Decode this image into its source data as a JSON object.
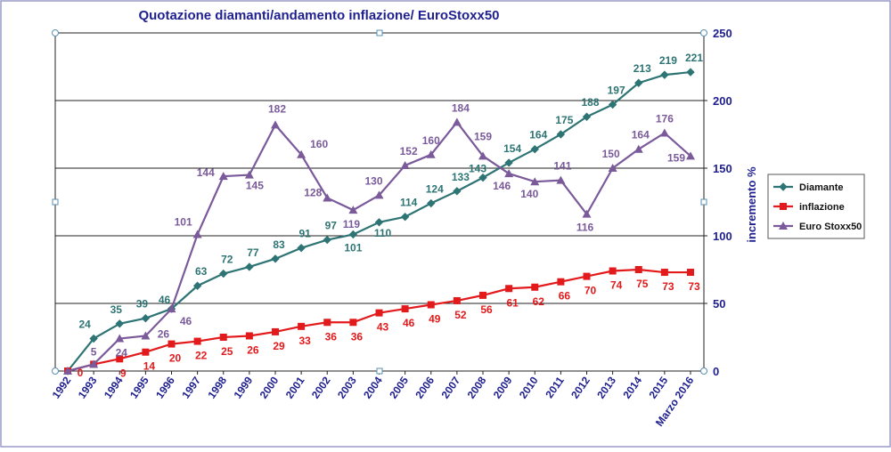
{
  "chart_data": {
    "type": "line",
    "title": "Quotazione diamanti/andamento inflazione/ EuroStoxx50",
    "ylabel": "incremento %",
    "ylim": [
      0,
      250
    ],
    "yticks": [
      "0",
      "50",
      "100",
      "150",
      "200",
      "250"
    ],
    "grid": true,
    "legend_position": "right",
    "categories": [
      "1992",
      "1993",
      "1994",
      "1995",
      "1996",
      "1997",
      "1998",
      "1999",
      "2000",
      "2001",
      "2002",
      "2003",
      "2004",
      "2005",
      "2006",
      "2007",
      "2008",
      "2009",
      "2010",
      "2011",
      "2012",
      "2013",
      "2014",
      "2015",
      "Marzo 2016"
    ],
    "series": [
      {
        "name": "Diamante",
        "color": "#2e7474",
        "marker": "diamond",
        "values": [
          0,
          24,
          35,
          39,
          46,
          63,
          72,
          77,
          83,
          91,
          97,
          101,
          110,
          114,
          124,
          133,
          143,
          154,
          164,
          175,
          188,
          197,
          213,
          219,
          221
        ],
        "labels": [
          "",
          "24",
          "35",
          "39",
          "46",
          "63",
          "72",
          "77",
          "83",
          "91",
          "97",
          "101",
          "110",
          "114",
          "124",
          "133",
          "143",
          "154",
          "164",
          "175",
          "188",
          "197",
          "213",
          "219",
          "221"
        ]
      },
      {
        "name": "inflazione",
        "color": "#e31a1c",
        "marker": "square",
        "values": [
          0,
          5,
          9,
          14,
          20,
          22,
          25,
          26,
          29,
          33,
          36,
          36,
          43,
          46,
          49,
          52,
          56,
          61,
          62,
          66,
          70,
          74,
          75,
          73,
          73
        ],
        "labels": [
          "0",
          "",
          "9",
          "14",
          "20",
          "22",
          "25",
          "26",
          "29",
          "33",
          "36",
          "36",
          "43",
          "46",
          "49",
          "52",
          "56",
          "61",
          "62",
          "66",
          "70",
          "74",
          "75",
          "73",
          "73"
        ]
      },
      {
        "name": "Euro Stoxx50",
        "color": "#7a5a9a",
        "marker": "triangle",
        "values": [
          0,
          5,
          24,
          26,
          46,
          101,
          144,
          145,
          182,
          160,
          128,
          119,
          130,
          152,
          160,
          184,
          159,
          146,
          140,
          141,
          116,
          150,
          164,
          176,
          159
        ],
        "labels": [
          "",
          "5",
          "24",
          "26",
          "46",
          "101",
          "144",
          "145",
          "182",
          "160",
          "128",
          "119",
          "130",
          "152",
          "160",
          "184",
          "159",
          "146",
          "140",
          "141",
          "116",
          "150",
          "164",
          "176",
          "159"
        ]
      }
    ]
  }
}
